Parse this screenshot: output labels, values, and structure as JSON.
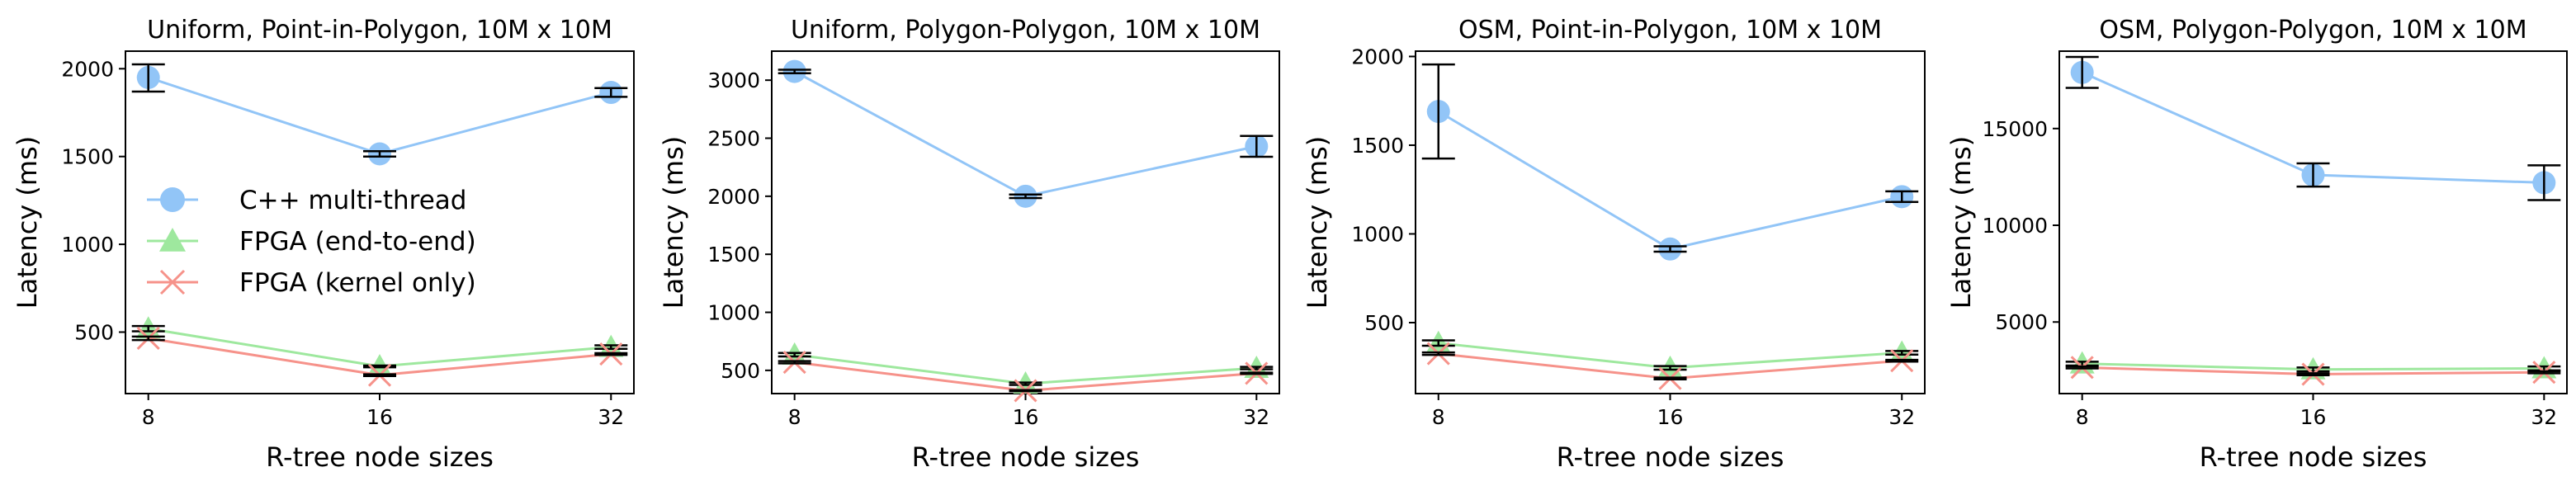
{
  "colors": {
    "cpu": "#92c5f7",
    "fpga_e2e": "#9ee89e",
    "fpga_kernel": "#f6928a",
    "errorbar": "#000000"
  },
  "chart_data": [
    {
      "type": "line",
      "title": "Uniform, Point-in-Polygon, 10M x 10M",
      "xlabel": "R-tree node sizes",
      "ylabel": "Latency (ms)",
      "categories": [
        "8",
        "16",
        "32"
      ],
      "ylim": [
        150,
        2100
      ],
      "yticks": [
        500,
        1000,
        1500,
        2000
      ],
      "grid": false,
      "legend": "center-left",
      "series": [
        {
          "name": "C++ multi-thread",
          "marker": "circle",
          "color": "#92c5f7",
          "values": [
            1950,
            1515,
            1865
          ],
          "err_low": [
            1870,
            1500,
            1840
          ],
          "err_high": [
            2025,
            1530,
            1890
          ]
        },
        {
          "name": "FPGA (end-to-end)",
          "marker": "triangle",
          "color": "#9ee89e",
          "values": [
            520,
            305,
            415
          ],
          "err_low": [
            505,
            300,
            405
          ],
          "err_high": [
            535,
            310,
            425
          ]
        },
        {
          "name": "FPGA (kernel only)",
          "marker": "x",
          "color": "#f6928a",
          "values": [
            465,
            255,
            375
          ],
          "err_low": [
            455,
            250,
            370
          ],
          "err_high": [
            475,
            260,
            380
          ]
        }
      ]
    },
    {
      "type": "line",
      "title": "Uniform, Polygon-Polygon, 10M x 10M",
      "xlabel": "R-tree node sizes",
      "ylabel": "Latency (ms)",
      "categories": [
        "8",
        "16",
        "32"
      ],
      "ylim": [
        300,
        3250
      ],
      "yticks": [
        500,
        1000,
        1500,
        2000,
        2500,
        3000
      ],
      "grid": false,
      "series": [
        {
          "name": "C++ multi-thread",
          "marker": "circle",
          "color": "#92c5f7",
          "values": [
            3075,
            2000,
            2430
          ],
          "err_low": [
            3060,
            1985,
            2340
          ],
          "err_high": [
            3090,
            2015,
            2520
          ]
        },
        {
          "name": "FPGA (end-to-end)",
          "marker": "triangle",
          "color": "#9ee89e",
          "values": [
            635,
            385,
            520
          ],
          "err_low": [
            620,
            375,
            510
          ],
          "err_high": [
            650,
            395,
            530
          ]
        },
        {
          "name": "FPGA (kernel only)",
          "marker": "x",
          "color": "#f6928a",
          "values": [
            570,
            325,
            475
          ],
          "err_low": [
            560,
            320,
            470
          ],
          "err_high": [
            580,
            330,
            480
          ]
        }
      ]
    },
    {
      "type": "line",
      "title": "OSM, Point-in-Polygon, 10M x 10M",
      "xlabel": "R-tree node sizes",
      "ylabel": "Latency (ms)",
      "categories": [
        "8",
        "16",
        "32"
      ],
      "ylim": [
        100,
        2030
      ],
      "yticks": [
        500,
        1000,
        1500,
        2000
      ],
      "grid": false,
      "series": [
        {
          "name": "C++ multi-thread",
          "marker": "circle",
          "color": "#92c5f7",
          "values": [
            1690,
            915,
            1210
          ],
          "err_low": [
            1425,
            900,
            1180
          ],
          "err_high": [
            1955,
            930,
            1240
          ]
        },
        {
          "name": "FPGA (end-to-end)",
          "marker": "triangle",
          "color": "#9ee89e",
          "values": [
            385,
            245,
            330
          ],
          "err_low": [
            370,
            235,
            320
          ],
          "err_high": [
            400,
            255,
            340
          ]
        },
        {
          "name": "FPGA (kernel only)",
          "marker": "x",
          "color": "#f6928a",
          "values": [
            325,
            185,
            285
          ],
          "err_low": [
            318,
            180,
            280
          ],
          "err_high": [
            332,
            190,
            290
          ]
        }
      ]
    },
    {
      "type": "line",
      "title": "OSM, Polygon-Polygon, 10M x 10M",
      "xlabel": "R-tree node sizes",
      "ylabel": "Latency (ms)",
      "categories": [
        "8",
        "16",
        "32"
      ],
      "ylim": [
        1300,
        19000
      ],
      "yticks": [
        5000,
        10000,
        15000
      ],
      "grid": false,
      "series": [
        {
          "name": "C++ multi-thread",
          "marker": "circle",
          "color": "#92c5f7",
          "values": [
            17900,
            12600,
            12200
          ],
          "err_low": [
            17100,
            12000,
            11300
          ],
          "err_high": [
            18700,
            13200,
            13100
          ]
        },
        {
          "name": "FPGA (end-to-end)",
          "marker": "triangle",
          "color": "#9ee89e",
          "values": [
            2850,
            2550,
            2600
          ],
          "err_low": [
            2750,
            2450,
            2500
          ],
          "err_high": [
            2950,
            2650,
            2700
          ]
        },
        {
          "name": "FPGA (kernel only)",
          "marker": "x",
          "color": "#f6928a",
          "values": [
            2650,
            2300,
            2400
          ],
          "err_low": [
            2600,
            2250,
            2350
          ],
          "err_high": [
            2700,
            2350,
            2450
          ]
        }
      ]
    }
  ]
}
